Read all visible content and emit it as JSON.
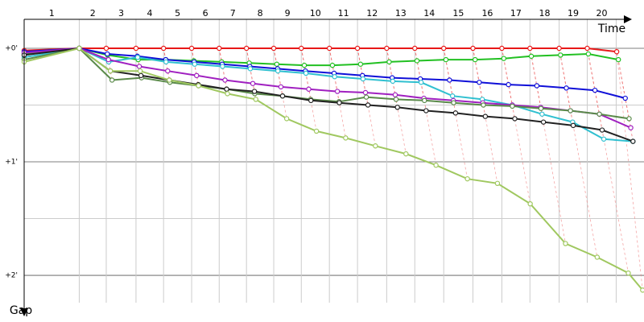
{
  "chart_data": {
    "type": "line",
    "x_label": "Time",
    "y_label": "Gap",
    "lap_labels": [
      1,
      2,
      3,
      4,
      5,
      6,
      7,
      8,
      9,
      10,
      11,
      12,
      13,
      14,
      15,
      16,
      17,
      18,
      19,
      20
    ],
    "xlim": [
      0,
      22.5
    ],
    "xticks": [
      0,
      2.0,
      2.98,
      4.06,
      5.06,
      6.08,
      7.08,
      8.07,
      9.06,
      10.06,
      11.08,
      12.1,
      13.16,
      14.18,
      15.23,
      16.29,
      17.34,
      18.36,
      19.42,
      20.44,
      21.49
    ],
    "ylim": [
      -0.255,
      2.34
    ],
    "yticks": [
      {
        "value": 0,
        "label": "+0'"
      },
      {
        "value": 1,
        "label": "+1'"
      },
      {
        "value": 2,
        "label": "+2'"
      }
    ],
    "minor_yticks": [
      0.5,
      1.5
    ],
    "grid": true,
    "series": [
      {
        "color": "#e81818",
        "x": [
          0,
          2,
          2.98,
          4.06,
          5.06,
          6.08,
          7.08,
          8.07,
          9.06,
          10.06,
          11.08,
          12.1,
          13.16,
          14.18,
          15.23,
          16.29,
          17.34,
          18.36,
          19.42,
          20.44,
          21.51
        ],
        "values": [
          0.02,
          0,
          0,
          0,
          0,
          0,
          0,
          0,
          0,
          0,
          0,
          0,
          0,
          0,
          0,
          0,
          0,
          0,
          0,
          0,
          0.03
        ]
      },
      {
        "color": "#22c022",
        "x": [
          0,
          2,
          3.03,
          4.14,
          5.14,
          6.16,
          7.17,
          8.17,
          9.17,
          10.17,
          11.19,
          12.21,
          13.25,
          14.26,
          15.31,
          16.37,
          17.41,
          18.41,
          19.47,
          20.48,
          21.57
        ],
        "values": [
          0.05,
          0,
          0.06,
          0.1,
          0.1,
          0.11,
          0.12,
          0.13,
          0.14,
          0.15,
          0.15,
          0.14,
          0.12,
          0.11,
          0.1,
          0.1,
          0.09,
          0.07,
          0.06,
          0.05,
          0.1
        ]
      },
      {
        "color": "#1010d8",
        "x": [
          0,
          2,
          3.02,
          4.11,
          5.14,
          6.17,
          7.19,
          8.19,
          9.2,
          10.21,
          11.25,
          12.28,
          13.36,
          14.38,
          15.44,
          16.52,
          17.58,
          18.61,
          19.68,
          20.72,
          21.82
        ],
        "values": [
          0.03,
          0,
          0.05,
          0.07,
          0.1,
          0.12,
          0.14,
          0.16,
          0.18,
          0.2,
          0.22,
          0.24,
          0.26,
          0.27,
          0.28,
          0.3,
          0.32,
          0.33,
          0.35,
          0.37,
          0.44
        ]
      },
      {
        "color": "#30c0d0",
        "x": [
          0,
          2,
          3.07,
          4.12,
          5.15,
          6.19,
          7.2,
          8.21,
          9.21,
          10.23,
          11.27,
          12.3,
          13.38,
          14.41,
          15.55,
          16.63,
          17.72,
          18.8,
          19.91,
          21.04,
          22.1
        ],
        "values": [
          0.08,
          0,
          0.12,
          0.08,
          0.12,
          0.14,
          0.16,
          0.18,
          0.2,
          0.22,
          0.25,
          0.27,
          0.29,
          0.3,
          0.42,
          0.45,
          0.5,
          0.58,
          0.65,
          0.8,
          0.82
        ]
      },
      {
        "color": "#a020c0",
        "x": [
          0,
          2,
          3.06,
          4.18,
          5.21,
          6.26,
          7.29,
          8.3,
          9.32,
          10.33,
          11.37,
          12.39,
          13.47,
          14.51,
          15.58,
          16.65,
          17.72,
          18.75,
          19.83,
          20.88,
          22.02
        ],
        "values": [
          0.04,
          0,
          0.1,
          0.16,
          0.2,
          0.24,
          0.28,
          0.31,
          0.34,
          0.36,
          0.38,
          0.39,
          0.41,
          0.44,
          0.46,
          0.48,
          0.5,
          0.52,
          0.55,
          0.58,
          0.7
        ]
      },
      {
        "color": "#5a8a4a",
        "x": [
          0,
          2,
          3.19,
          4.26,
          5.29,
          6.33,
          7.35,
          8.37,
          9.38,
          10.4,
          11.43,
          12.42,
          13.5,
          14.53,
          15.59,
          16.67,
          17.72,
          18.76,
          19.83,
          20.88,
          21.96
        ],
        "values": [
          0.1,
          0,
          0.28,
          0.26,
          0.3,
          0.33,
          0.36,
          0.4,
          0.42,
          0.45,
          0.47,
          0.43,
          0.45,
          0.46,
          0.48,
          0.5,
          0.51,
          0.53,
          0.55,
          0.58,
          0.62
        ]
      },
      {
        "color": "#222222",
        "x": [
          0,
          2,
          3.13,
          4.24,
          5.27,
          6.32,
          7.35,
          8.36,
          9.38,
          10.41,
          11.44,
          12.48,
          13.55,
          14.59,
          15.66,
          16.74,
          17.81,
          18.85,
          19.93,
          20.98,
          22.1
        ],
        "values": [
          0.06,
          0,
          0.2,
          0.24,
          0.28,
          0.32,
          0.36,
          0.38,
          0.42,
          0.46,
          0.48,
          0.5,
          0.52,
          0.55,
          0.57,
          0.6,
          0.62,
          0.65,
          0.68,
          0.72,
          0.82
        ]
      },
      {
        "color": "#a0c860",
        "x": [
          0,
          2,
          3.13,
          4.21,
          5.27,
          6.33,
          7.38,
          8.41,
          9.53,
          10.61,
          11.67,
          12.75,
          13.86,
          14.95,
          16.09,
          17.18,
          18.37,
          19.65,
          20.8,
          21.93,
          22.45
        ],
        "values": [
          0.12,
          0,
          0.2,
          0.2,
          0.28,
          0.33,
          0.4,
          0.45,
          0.62,
          0.73,
          0.79,
          0.86,
          0.93,
          1.03,
          1.15,
          1.19,
          1.37,
          1.72,
          1.84,
          1.98,
          2.13
        ]
      }
    ]
  }
}
